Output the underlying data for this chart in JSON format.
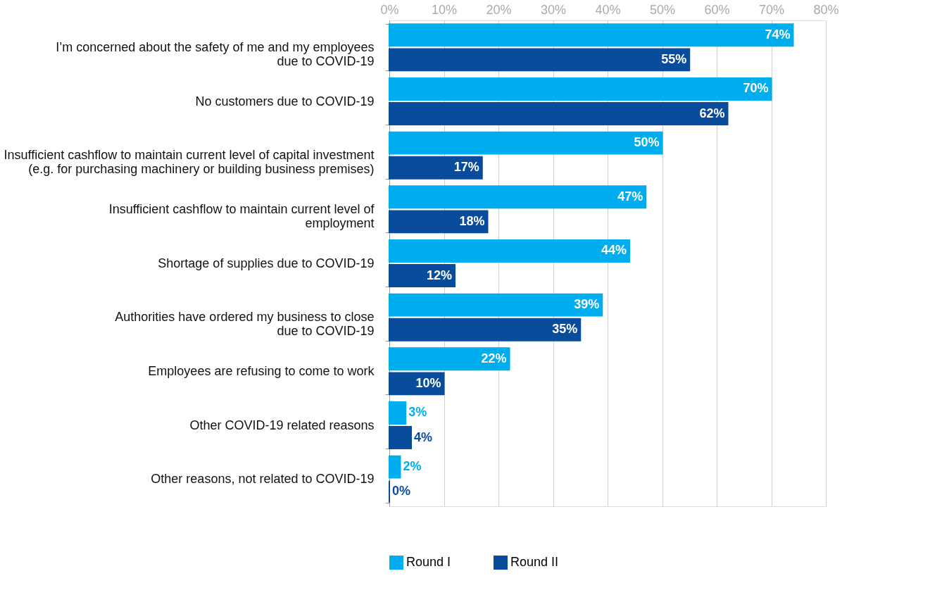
{
  "chart_data": {
    "type": "bar",
    "orientation": "horizontal",
    "categories": [
      "I’m concerned about the safety of me and my employees\ndue to COVID-19",
      "No customers due to COVID-19",
      "Insufficient cashflow to maintain current level of capital investment\n(e.g. for purchasing machinery or building business premises)",
      "Insufficient cashflow to maintain current level of\nemployment",
      "Shortage of supplies due to COVID-19",
      "Authorities have ordered my business to close\ndue to COVID-19",
      "Employees are refusing to come to work",
      "Other COVID-19 related reasons",
      "Other reasons, not related to COVID-19"
    ],
    "series": [
      {
        "name": "Round I",
        "color": "#00aeef",
        "values": [
          74,
          70,
          50,
          47,
          44,
          39,
          22,
          3,
          2
        ],
        "value_labels": [
          "74%",
          "70%",
          "50%",
          "47%",
          "44%",
          "39%",
          "22%",
          "3%",
          "2%"
        ]
      },
      {
        "name": "Round II",
        "color": "#0a4c9c",
        "values": [
          55,
          62,
          17,
          18,
          12,
          35,
          10,
          4,
          0
        ],
        "value_labels": [
          "55%",
          "62%",
          "17%",
          "18%",
          "12%",
          "35%",
          "10%",
          "4%",
          "0%"
        ]
      }
    ],
    "xlim": [
      0,
      80
    ],
    "xticks": [
      {
        "value": 0,
        "label": "0%"
      },
      {
        "value": 10,
        "label": "10%"
      },
      {
        "value": 20,
        "label": "20%"
      },
      {
        "value": 30,
        "label": "30%"
      },
      {
        "value": 40,
        "label": "40%"
      },
      {
        "value": 50,
        "label": "50%"
      },
      {
        "value": 60,
        "label": "60%"
      },
      {
        "value": 70,
        "label": "70%"
      },
      {
        "value": 80,
        "label": "80%"
      }
    ],
    "grid": "x",
    "legend": "bottom"
  }
}
